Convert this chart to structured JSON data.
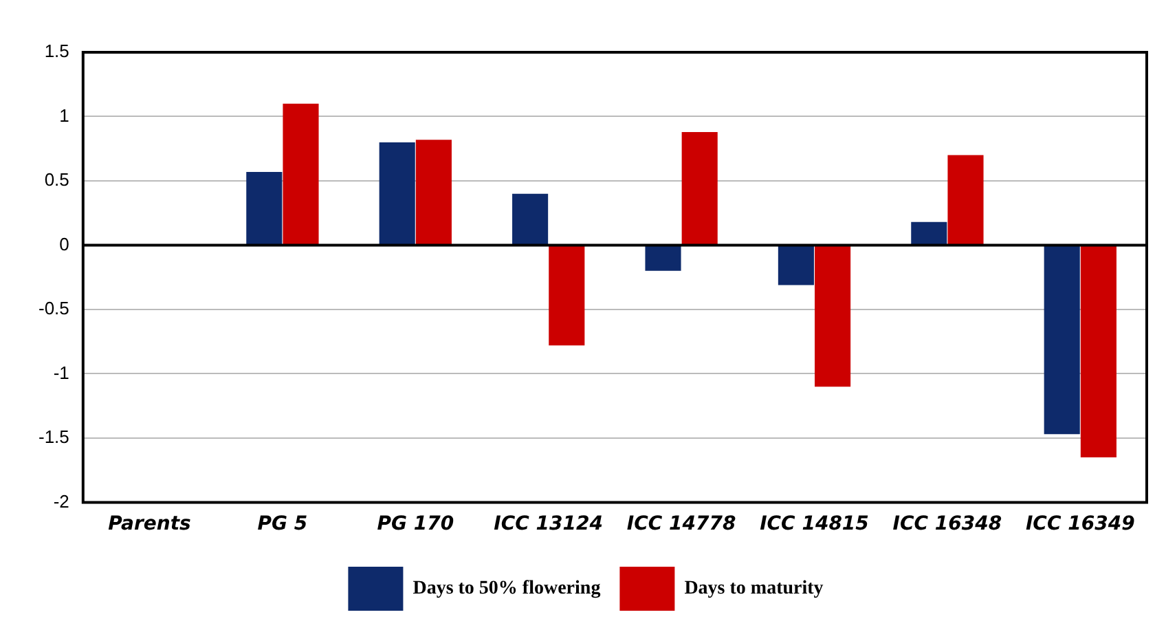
{
  "chart_data": {
    "type": "bar",
    "categories": [
      "Parents",
      "PG 5",
      "PG 170",
      "ICC 13124",
      "ICC 14778",
      "ICC 14815",
      "ICC 16348",
      "ICC 16349"
    ],
    "series": [
      {
        "name": "Days to 50% flowering",
        "color": "#0e2a6b",
        "values": [
          null,
          0.57,
          0.8,
          0.4,
          -0.2,
          -0.31,
          0.18,
          -1.47
        ]
      },
      {
        "name": "Days to maturity",
        "color": "#cc0000",
        "values": [
          null,
          1.1,
          0.82,
          -0.78,
          0.88,
          -1.1,
          0.7,
          -1.65
        ]
      }
    ],
    "ylim": [
      -2,
      1.5
    ],
    "yticks": [
      -2,
      -1.5,
      -1,
      -0.5,
      0,
      0.5,
      1,
      1.5
    ],
    "grid": "y",
    "legend": "bottom"
  }
}
